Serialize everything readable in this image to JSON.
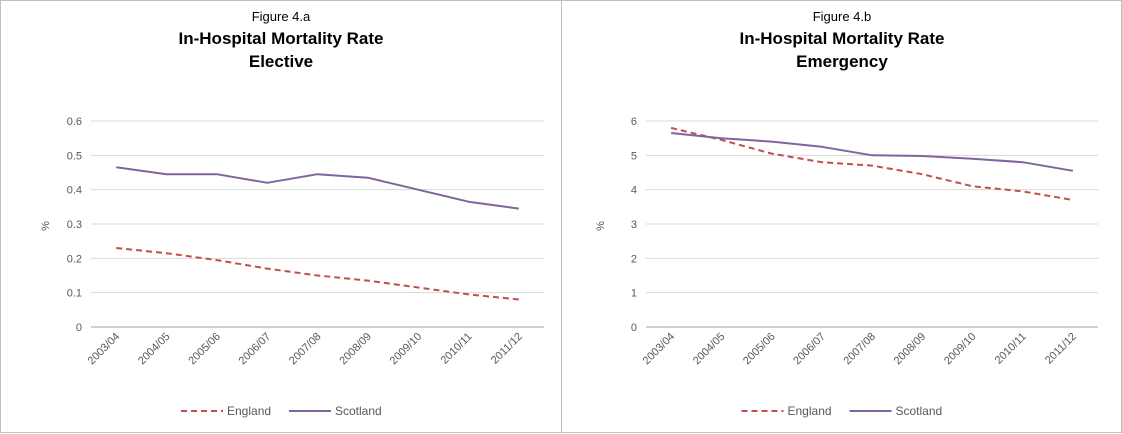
{
  "chart_data": [
    {
      "type": "line",
      "figure_label": "Figure 4.a",
      "title": "In-Hospital Mortality Rate",
      "subtitle": "Elective",
      "ylabel": "%",
      "ylim": [
        0,
        0.6
      ],
      "yticks": [
        "0",
        "0.1",
        "0.2",
        "0.3",
        "0.4",
        "0.5",
        "0.6"
      ],
      "ytick_values": [
        0,
        0.1,
        0.2,
        0.3,
        0.4,
        0.5,
        0.6
      ],
      "grid": true,
      "legend": "bottom",
      "categories": [
        "2003/04",
        "2004/05",
        "2005/06",
        "2006/07",
        "2007/08",
        "2008/09",
        "2009/10",
        "2010/11",
        "2011/12"
      ],
      "series": [
        {
          "name": "England",
          "style": "dashed",
          "color": "#c0504d",
          "values": [
            0.23,
            0.215,
            0.195,
            0.17,
            0.15,
            0.135,
            0.115,
            0.095,
            0.08
          ]
        },
        {
          "name": "Scotland",
          "style": "solid",
          "color": "#8064a2",
          "values": [
            0.465,
            0.445,
            0.445,
            0.42,
            0.445,
            0.435,
            0.4,
            0.365,
            0.345
          ]
        }
      ]
    },
    {
      "type": "line",
      "figure_label": "Figure 4.b",
      "title": "In-Hospital Mortality Rate",
      "subtitle": "Emergency",
      "ylabel": "%",
      "ylim": [
        0,
        6
      ],
      "yticks": [
        "0",
        "1",
        "2",
        "3",
        "4",
        "5",
        "6"
      ],
      "ytick_values": [
        0,
        1,
        2,
        3,
        4,
        5,
        6
      ],
      "grid": true,
      "legend": "bottom",
      "categories": [
        "2003/04",
        "2004/05",
        "2005/06",
        "2006/07",
        "2007/08",
        "2008/09",
        "2009/10",
        "2010/11",
        "2011/12"
      ],
      "series": [
        {
          "name": "England",
          "style": "dashed",
          "color": "#c0504d",
          "values": [
            5.8,
            5.45,
            5.05,
            4.8,
            4.7,
            4.45,
            4.1,
            3.95,
            3.7
          ]
        },
        {
          "name": "Scotland",
          "style": "solid",
          "color": "#8064a2",
          "values": [
            5.65,
            5.5,
            5.4,
            5.25,
            5.0,
            4.98,
            4.9,
            4.8,
            4.55
          ]
        }
      ]
    }
  ]
}
